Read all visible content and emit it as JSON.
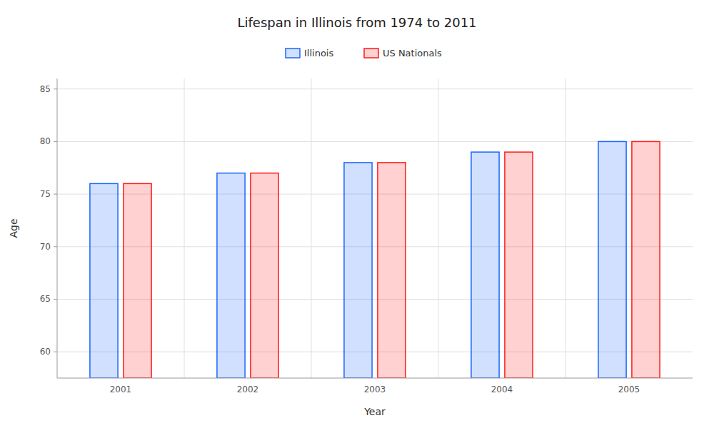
{
  "chart_data": {
    "type": "bar",
    "title": "Lifespan in Illinois from 1974 to 2011",
    "x_label": "Year",
    "y_label": "Age",
    "categories": [
      "2001",
      "2002",
      "2003",
      "2004",
      "2005"
    ],
    "series": [
      {
        "name": "Illinois",
        "color": "#1a66ff",
        "values": [
          76.0,
          77.0,
          78.0,
          79.0,
          80.0
        ]
      },
      {
        "name": "US Nationals",
        "color": "#ff1a1a",
        "values": [
          76.0,
          77.0,
          78.0,
          79.0,
          80.0
        ]
      }
    ],
    "ylim": [
      57.5,
      86
    ],
    "yticks": [
      60,
      65,
      70,
      75,
      80,
      85
    ],
    "grid": true,
    "legend": "top"
  }
}
